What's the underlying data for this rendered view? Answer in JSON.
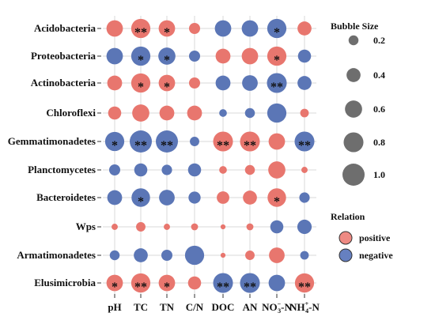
{
  "chart_data": {
    "type": "scatter",
    "subtype": "bubble-matrix",
    "rows": [
      "Acidobacteria",
      "Proteobacteria",
      "Actinobacteria",
      "Chloroflexi",
      "Gemmatimonadetes",
      "Planctomycetes",
      "Bacteroidetes",
      "Wps",
      "Armatimonadetes",
      "Elusimicrobia"
    ],
    "columns": [
      {
        "main": "pH"
      },
      {
        "main": "TC"
      },
      {
        "main": "TN"
      },
      {
        "main": "C/N"
      },
      {
        "main": "DOC"
      },
      {
        "main": "AN"
      },
      {
        "main": "NO",
        "sub": "3",
        "sup": "−",
        "suffix": "-N"
      },
      {
        "main": "NH",
        "sub": "4",
        "sup": "+",
        "suffix": "-N"
      }
    ],
    "bubbles": [
      [
        [
          "+",
          0.55,
          ""
        ],
        [
          "+",
          0.75,
          "**"
        ],
        [
          "+",
          0.55,
          "*"
        ],
        [
          "+",
          0.25,
          ""
        ],
        [
          "-",
          0.55,
          ""
        ],
        [
          "-",
          0.55,
          ""
        ],
        [
          "-",
          0.75,
          "*"
        ],
        [
          "+",
          0.4,
          ""
        ]
      ],
      [
        [
          "-",
          0.55,
          ""
        ],
        [
          "-",
          0.75,
          "*"
        ],
        [
          "-",
          0.6,
          "*"
        ],
        [
          "-",
          0.25,
          ""
        ],
        [
          "+",
          0.45,
          ""
        ],
        [
          "+",
          0.55,
          ""
        ],
        [
          "+",
          0.75,
          "*"
        ],
        [
          "-",
          0.35,
          ""
        ]
      ],
      [
        [
          "+",
          0.45,
          ""
        ],
        [
          "+",
          0.75,
          "*"
        ],
        [
          "+",
          0.55,
          "*"
        ],
        [
          "+",
          0.25,
          ""
        ],
        [
          "-",
          0.45,
          ""
        ],
        [
          "-",
          0.5,
          ""
        ],
        [
          "-",
          0.8,
          "**"
        ],
        [
          "-",
          0.4,
          ""
        ]
      ],
      [
        [
          "+",
          0.35,
          ""
        ],
        [
          "+",
          0.6,
          ""
        ],
        [
          "+",
          0.45,
          ""
        ],
        [
          "+",
          0.45,
          ""
        ],
        [
          "-",
          0.12,
          ""
        ],
        [
          "-",
          0.2,
          ""
        ],
        [
          "-",
          0.75,
          ""
        ],
        [
          "+",
          0.15,
          ""
        ]
      ],
      [
        [
          "-",
          0.75,
          "*"
        ],
        [
          "-",
          1.0,
          "**"
        ],
        [
          "-",
          1.0,
          "**"
        ],
        [
          "-",
          0.18,
          ""
        ],
        [
          "+",
          0.8,
          "**"
        ],
        [
          "+",
          0.8,
          "**"
        ],
        [
          "+",
          0.55,
          ""
        ],
        [
          "-",
          0.8,
          "**"
        ]
      ],
      [
        [
          "-",
          0.25,
          ""
        ],
        [
          "-",
          0.35,
          ""
        ],
        [
          "-",
          0.22,
          ""
        ],
        [
          "-",
          0.35,
          ""
        ],
        [
          "+",
          0.12,
          ""
        ],
        [
          "+",
          0.2,
          ""
        ],
        [
          "+",
          0.6,
          ""
        ],
        [
          "+",
          0.08,
          ""
        ]
      ],
      [
        [
          "-",
          0.45,
          ""
        ],
        [
          "-",
          0.7,
          "*"
        ],
        [
          "-",
          0.5,
          ""
        ],
        [
          "-",
          0.3,
          ""
        ],
        [
          "+",
          0.32,
          ""
        ],
        [
          "+",
          0.4,
          ""
        ],
        [
          "+",
          0.7,
          "*"
        ],
        [
          "-",
          0.22,
          ""
        ]
      ],
      [
        [
          "+",
          0.08,
          ""
        ],
        [
          "+",
          0.18,
          ""
        ],
        [
          "+",
          0.08,
          ""
        ],
        [
          "+",
          0.1,
          ""
        ],
        [
          "+",
          0.05,
          ""
        ],
        [
          "+",
          0.1,
          ""
        ],
        [
          "-",
          0.35,
          ""
        ],
        [
          "-",
          0.42,
          ""
        ]
      ],
      [
        [
          "-",
          0.2,
          ""
        ],
        [
          "-",
          0.4,
          ""
        ],
        [
          "-",
          0.25,
          ""
        ],
        [
          "-",
          0.75,
          ""
        ],
        [
          "+",
          0.05,
          ""
        ],
        [
          "+",
          0.18,
          ""
        ],
        [
          "+",
          0.5,
          ""
        ],
        [
          "-",
          0.15,
          ""
        ]
      ],
      [
        [
          "+",
          0.55,
          "*"
        ],
        [
          "+",
          0.75,
          "**"
        ],
        [
          "+",
          0.55,
          "*"
        ],
        [
          "+",
          0.35,
          ""
        ],
        [
          "-",
          0.8,
          "**"
        ],
        [
          "-",
          0.8,
          "**"
        ],
        [
          "-",
          0.55,
          ""
        ],
        [
          "+",
          0.75,
          "**"
        ]
      ]
    ],
    "size_legend": {
      "title": "Bubble Size",
      "values": [
        0.2,
        0.4,
        0.6,
        0.8,
        1.0
      ],
      "labels": [
        "0.2",
        "0.4",
        "0.6",
        "0.8",
        "1.0"
      ]
    },
    "relation_legend": {
      "title": "Relation",
      "items": [
        {
          "label": "positive",
          "key": "+"
        },
        {
          "label": "negative",
          "key": "-"
        }
      ]
    },
    "colors": {
      "positive": "#e8766e",
      "negative": "#5b76b6",
      "legend_positive": "#ee8a83",
      "legend_negative": "#6680c0",
      "legend_dot": "#6e6e6e"
    }
  }
}
